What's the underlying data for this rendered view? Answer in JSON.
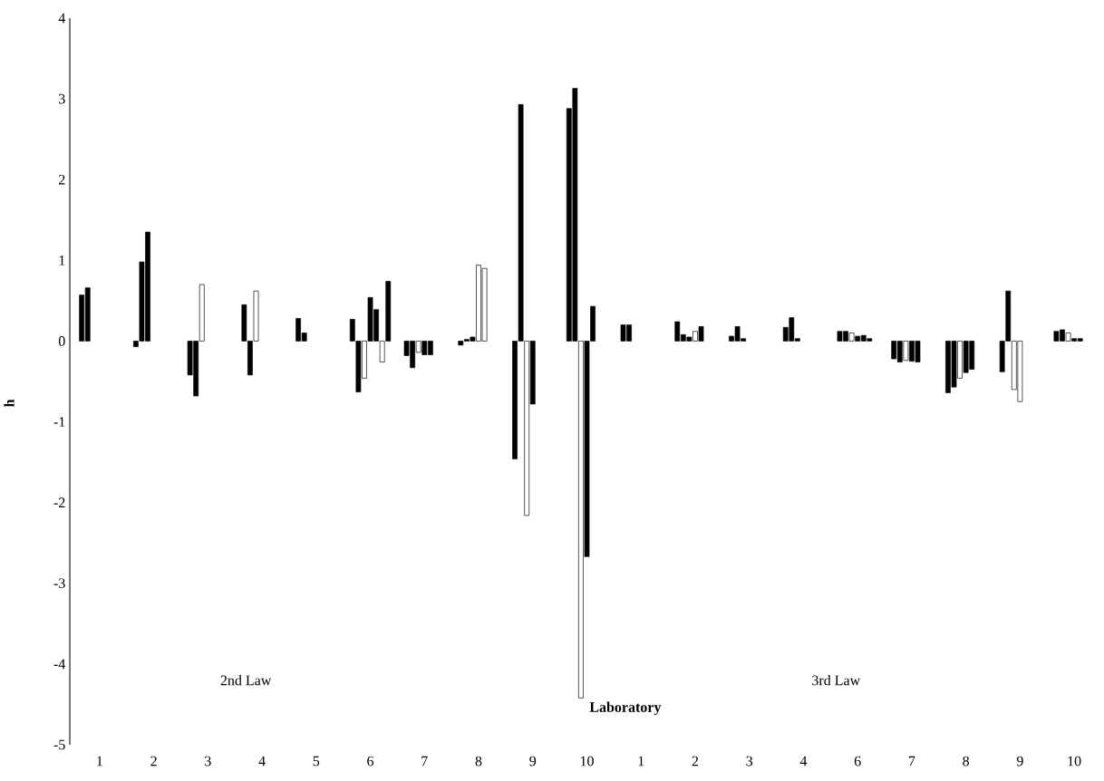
{
  "chart_data": {
    "type": "bar",
    "ylabel": "h",
    "xlabel": "Laboratory",
    "annotations": [
      "2nd Law",
      "3rd Law"
    ],
    "categories": [
      "1",
      "2",
      "3",
      "4",
      "5",
      "6",
      "7",
      "8",
      "9",
      "10",
      "1",
      "2",
      "3",
      "4",
      "6",
      "7",
      "8",
      "9",
      "10"
    ],
    "ylim": [
      -5,
      4
    ],
    "yticks": [
      -5,
      -4,
      -3,
      -2,
      -1,
      0,
      1,
      2,
      3,
      4
    ],
    "grid": false,
    "series": [
      {
        "color": "#000000",
        "values": [
          0.57,
          -0.07,
          -0.42,
          0.45,
          0.28,
          0.27,
          -0.18,
          -0.05,
          -1.46,
          2.88,
          0.2,
          0.24,
          0.06,
          0.17,
          0.12,
          -0.22,
          -0.64,
          -0.38,
          0.12
        ]
      },
      {
        "color": "#000000",
        "values": [
          0.66,
          0.98,
          -0.68,
          -0.42,
          0.1,
          -0.63,
          -0.33,
          0.02,
          2.93,
          3.13,
          0.2,
          0.08,
          0.18,
          0.29,
          0.12,
          -0.26,
          -0.57,
          0.62,
          0.14
        ]
      },
      {
        "values": [
          null,
          1.35,
          0.7,
          0.62,
          null,
          -0.46,
          -0.14,
          0.05,
          -2.16,
          -4.42,
          null,
          0.05,
          0.03,
          0.03,
          0.1,
          -0.24,
          -0.46,
          -0.6,
          0.1
        ],
        "colors": [
          null,
          "#000000",
          "#ffffff",
          "#ffffff",
          "#ffffff",
          "#ffffff",
          "#ffffff",
          "#000000",
          "#ffffff",
          "#ffffff",
          null,
          "#000000",
          "#000000",
          "#000000",
          "#ffffff",
          "#ffffff",
          "#ffffff",
          "#ffffff",
          "#ffffff"
        ]
      },
      {
        "values": [
          null,
          null,
          null,
          null,
          null,
          0.54,
          -0.17,
          0.94,
          -0.78,
          -2.67,
          null,
          0.12,
          null,
          null,
          0.06,
          -0.25,
          -0.39,
          -0.75,
          0.03
        ],
        "colors": [
          null,
          null,
          null,
          null,
          null,
          "#000000",
          "#000000",
          "#ffffff",
          "#000000",
          "#000000",
          null,
          "#ffffff",
          null,
          null,
          "#000000",
          "#000000",
          "#000000",
          "#ffffff",
          "#000000"
        ]
      },
      {
        "values": [
          null,
          null,
          null,
          null,
          null,
          0.39,
          -0.17,
          0.9,
          null,
          0.43,
          null,
          0.18,
          null,
          null,
          0.07,
          -0.26,
          -0.35,
          null,
          0.03
        ],
        "colors": [
          null,
          null,
          null,
          null,
          null,
          "#000000",
          "#000000",
          "#ffffff",
          null,
          "#000000",
          null,
          "#000000",
          null,
          null,
          "#000000",
          "#000000",
          "#000000",
          null,
          "#000000"
        ]
      },
      {
        "values": [
          null,
          null,
          null,
          null,
          null,
          -0.26,
          null,
          null,
          null,
          null,
          null,
          null,
          null,
          null,
          0.03,
          null,
          null,
          null,
          null
        ],
        "colors": [
          null,
          null,
          null,
          null,
          null,
          "#ffffff",
          null,
          null,
          null,
          null,
          null,
          null,
          null,
          null,
          "#000000",
          null,
          null,
          null,
          null
        ]
      },
      {
        "color": "#000000",
        "values": [
          null,
          null,
          null,
          null,
          null,
          0.74,
          null,
          null,
          null,
          null,
          null,
          null,
          null,
          null,
          null,
          null,
          null,
          null,
          null
        ]
      }
    ]
  }
}
